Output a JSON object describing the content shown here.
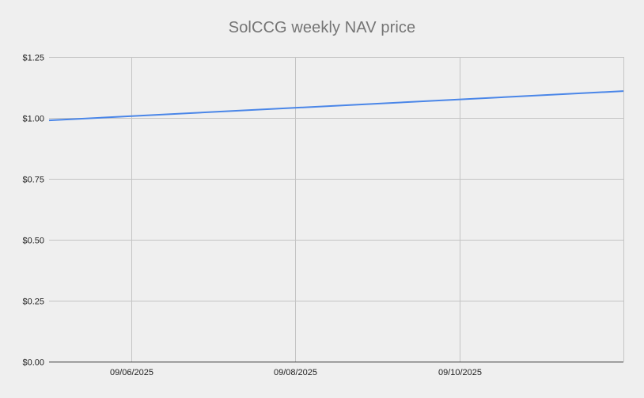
{
  "chart_data": {
    "type": "line",
    "title": "SolCCG weekly NAV price",
    "xlabel": "",
    "ylabel": "",
    "x_tick_labels": [
      "09/06/2025",
      "09/08/2025",
      "09/10/2025"
    ],
    "y_tick_labels": [
      "$0.00",
      "$0.25",
      "$0.50",
      "$0.75",
      "$1.00",
      "$1.25"
    ],
    "ylim": [
      0,
      1.25
    ],
    "x_range": [
      "09/05/2025",
      "09/12/2025"
    ],
    "series": [
      {
        "color": "#4a86e8",
        "x": [
          "09/05/2025",
          "09/12/2025"
        ],
        "values": [
          0.99,
          1.11
        ]
      }
    ],
    "grid": true,
    "legend": "none"
  }
}
